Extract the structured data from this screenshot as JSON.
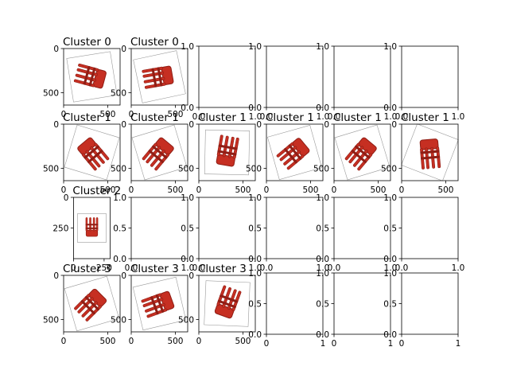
{
  "chart_data": {
    "type": "image-grid",
    "rows": 4,
    "cols": 6,
    "panels": [
      {
        "title": "Cluster 0",
        "image": true,
        "xlim": [
          0,
          640
        ],
        "ylim": [
          640,
          0
        ],
        "xticks": [
          0,
          500
        ],
        "yticks": [
          0,
          500
        ],
        "chair_angle": -75
      },
      {
        "title": "Cluster 0",
        "image": true,
        "xlim": [
          0,
          640
        ],
        "ylim": [
          640,
          0
        ],
        "xticks": [
          0,
          500
        ],
        "yticks": [
          0,
          500
        ],
        "chair_angle": -100
      },
      {
        "title": "",
        "image": false,
        "xticks": [
          0.0,
          1.0
        ],
        "yticks": [
          0.0,
          1.0
        ]
      },
      {
        "title": "",
        "image": false,
        "xticks": [
          0.0,
          1.0
        ],
        "yticks": [
          0.0,
          1.0
        ]
      },
      {
        "title": "",
        "image": false,
        "xticks": [
          0.0,
          1.0
        ],
        "yticks": [
          0.0,
          1.0
        ]
      },
      {
        "title": "",
        "image": false,
        "xticks": [
          0.0,
          1.0
        ],
        "yticks": [
          0.0,
          1.0
        ]
      },
      {
        "title": "Cluster 1",
        "image": true,
        "xlim": [
          0,
          640
        ],
        "ylim": [
          640,
          0
        ],
        "xticks": [
          0,
          500
        ],
        "yticks": [
          0,
          500
        ],
        "chair_angle": 140
      },
      {
        "title": "Cluster 1",
        "image": true,
        "xlim": [
          0,
          640
        ],
        "ylim": [
          640,
          0
        ],
        "xticks": [
          0,
          500
        ],
        "yticks": [
          0,
          500
        ],
        "chair_angle": -140
      },
      {
        "title": "Cluster 1",
        "image": true,
        "xlim": [
          0,
          640
        ],
        "ylim": [
          640,
          0
        ],
        "xticks": [
          0,
          500
        ],
        "yticks": [
          0,
          500
        ],
        "chair_angle": 10
      },
      {
        "title": "Cluster 1",
        "image": true,
        "xlim": [
          0,
          640
        ],
        "ylim": [
          640,
          0
        ],
        "xticks": [
          0,
          500
        ],
        "yticks": [
          0,
          500
        ],
        "chair_angle": -130
      },
      {
        "title": "Cluster 1",
        "image": true,
        "xlim": [
          0,
          640
        ],
        "ylim": [
          640,
          0
        ],
        "xticks": [
          0,
          500
        ],
        "yticks": [
          0,
          500
        ],
        "chair_angle": -140
      },
      {
        "title": "Cluster 1",
        "image": true,
        "xlim": [
          0,
          640
        ],
        "ylim": [
          640,
          0
        ],
        "xticks": [
          0,
          500
        ],
        "yticks": [
          0,
          500
        ],
        "chair_angle": 175
      },
      {
        "title": "Cluster 2",
        "image": true,
        "xlim": [
          0,
          300
        ],
        "ylim": [
          500,
          0
        ],
        "xticks": [
          0,
          250
        ],
        "yticks": [
          0,
          250
        ],
        "chair_angle": 0
      },
      {
        "title": "",
        "image": false,
        "xticks": [
          0.0,
          1.0
        ],
        "yticks": [
          0.0,
          0.5,
          1.0
        ]
      },
      {
        "title": "",
        "image": false,
        "xticks": [
          0.0,
          1.0
        ],
        "yticks": [
          0.0,
          0.5,
          1.0
        ]
      },
      {
        "title": "",
        "image": false,
        "xticks": [
          0.0,
          1.0
        ],
        "yticks": [
          0.0,
          0.5,
          1.0
        ]
      },
      {
        "title": "",
        "image": false,
        "xticks": [
          0.0,
          1.0
        ],
        "yticks": [
          0.0,
          0.5,
          1.0
        ]
      },
      {
        "title": "",
        "image": false,
        "xticks": [
          0.0,
          1.0
        ],
        "yticks": [
          0.0,
          0.5,
          1.0
        ]
      },
      {
        "title": "Cluster 3",
        "image": true,
        "xlim": [
          0,
          640
        ],
        "ylim": [
          640,
          0
        ],
        "xticks": [
          0,
          500
        ],
        "yticks": [
          0,
          500
        ],
        "chair_angle": -135
      },
      {
        "title": "Cluster 3",
        "image": true,
        "xlim": [
          0,
          640
        ],
        "ylim": [
          640,
          0
        ],
        "xticks": [
          0,
          500
        ],
        "yticks": [
          0,
          500
        ],
        "chair_angle": -110
      },
      {
        "title": "Cluster 3",
        "image": true,
        "xlim": [
          0,
          640
        ],
        "ylim": [
          640,
          0
        ],
        "xticks": [
          0,
          500
        ],
        "yticks": [
          0,
          500
        ],
        "chair_angle": 20
      },
      {
        "title": "",
        "image": false,
        "xticks": [
          0,
          1
        ],
        "yticks": [
          0.0,
          0.5,
          1.0
        ]
      },
      {
        "title": "",
        "image": false,
        "xticks": [
          0,
          1
        ],
        "yticks": [
          0.0,
          0.5,
          1.0
        ]
      },
      {
        "title": "",
        "image": false,
        "xticks": [
          0,
          1
        ],
        "yticks": [
          0.0,
          0.5,
          1.0
        ]
      }
    ]
  },
  "colors": {
    "chair": "#c62f22",
    "chair_dark": "#8f1e15",
    "frame": "#9a9a9a",
    "axis": "#000000"
  }
}
